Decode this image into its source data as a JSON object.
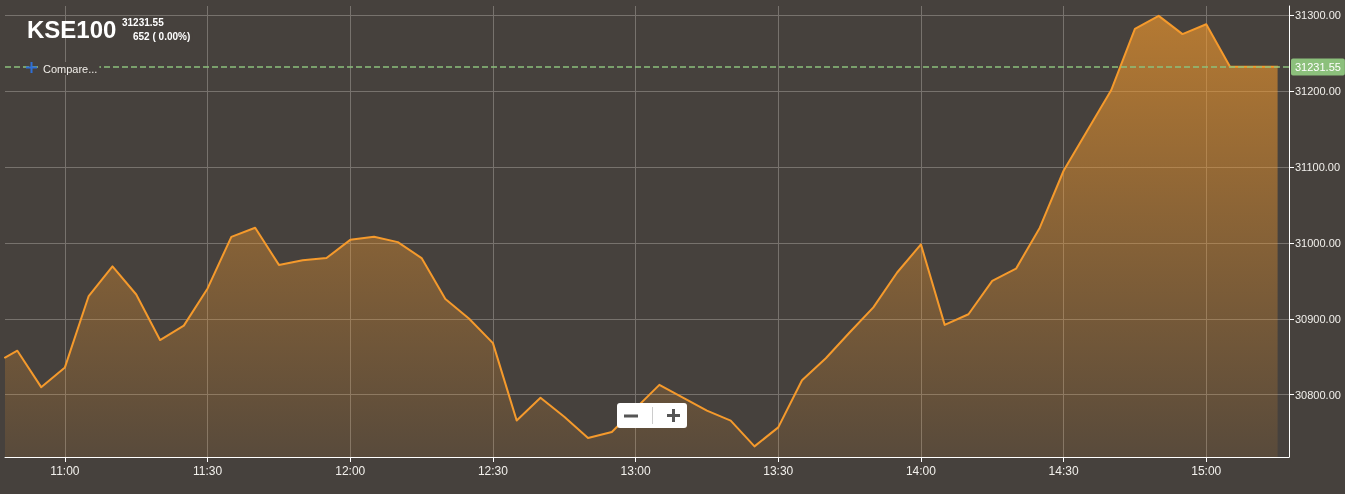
{
  "chart_data": {
    "type": "area",
    "title": "KSE100",
    "annotations": [
      "31231.55",
      "652 ( 0.00%)",
      "Compare..."
    ],
    "x": [
      10.79,
      10.8333,
      10.9167,
      11,
      11.0833,
      11.1667,
      11.25,
      11.3333,
      11.4167,
      11.5,
      11.5833,
      11.6667,
      11.75,
      11.8333,
      11.9167,
      12,
      12.0833,
      12.1667,
      12.25,
      12.3333,
      12.4167,
      12.5,
      12.5833,
      12.6667,
      12.75,
      12.8333,
      12.9167,
      13,
      13.0833,
      13.1667,
      13.25,
      13.3333,
      13.4167,
      13.5,
      13.5833,
      13.6667,
      13.75,
      13.8333,
      13.9167,
      14,
      14.0833,
      14.1667,
      14.25,
      14.3333,
      14.4167,
      14.5,
      14.5833,
      14.6667,
      14.75,
      14.8333,
      14.9167,
      15,
      15.0833,
      15.1667,
      15.25
    ],
    "series": [
      {
        "color": "#f59a2c",
        "values": [
          30849,
          30858,
          30810,
          30836,
          30930,
          30969,
          30932,
          30872,
          30891,
          30940,
          31008,
          31020,
          30971,
          30977,
          30980,
          31004,
          31008,
          31001,
          30980,
          30926,
          30900,
          30868,
          30766,
          30796,
          30771,
          30743,
          30751,
          null,
          30813,
          null,
          30779,
          30766,
          30732,
          30757,
          30819,
          30848,
          30882,
          30915,
          30961,
          30998,
          30892,
          30906,
          30950,
          30966,
          31020,
          31095,
          31148,
          31201,
          31282,
          31299,
          31275,
          31288,
          31232,
          31232,
          31232
        ]
      }
    ],
    "xlim": [
      10.79,
      15.29
    ],
    "xticks": [
      {
        "value": 11,
        "label": "11:00"
      },
      {
        "value": 11.5,
        "label": "11:30"
      },
      {
        "value": 12,
        "label": "12:00"
      },
      {
        "value": 12.5,
        "label": "12:30"
      },
      {
        "value": 13,
        "label": "13:00"
      },
      {
        "value": 13.5,
        "label": "13:30"
      },
      {
        "value": 14,
        "label": "14:00"
      },
      {
        "value": 14.5,
        "label": "14:30"
      },
      {
        "value": 15,
        "label": "15:00"
      }
    ],
    "ylim": [
      30718,
      31312
    ],
    "yticks": [
      {
        "value": 30800,
        "label": "30800.00"
      },
      {
        "value": 30900,
        "label": "30900.00"
      },
      {
        "value": 31000,
        "label": "31000.00"
      },
      {
        "value": 31100,
        "label": "31100.00"
      },
      {
        "value": 31200,
        "label": "31200.00"
      },
      {
        "value": 31300,
        "label": "31300.00"
      }
    ],
    "ref_lines": [
      {
        "axis": "y",
        "value": 31231.55,
        "label": "31231.55",
        "color": "#8cc07c",
        "line_style": "dashed"
      }
    ],
    "grid": true,
    "marker": "none",
    "line_style": "solid"
  }
}
